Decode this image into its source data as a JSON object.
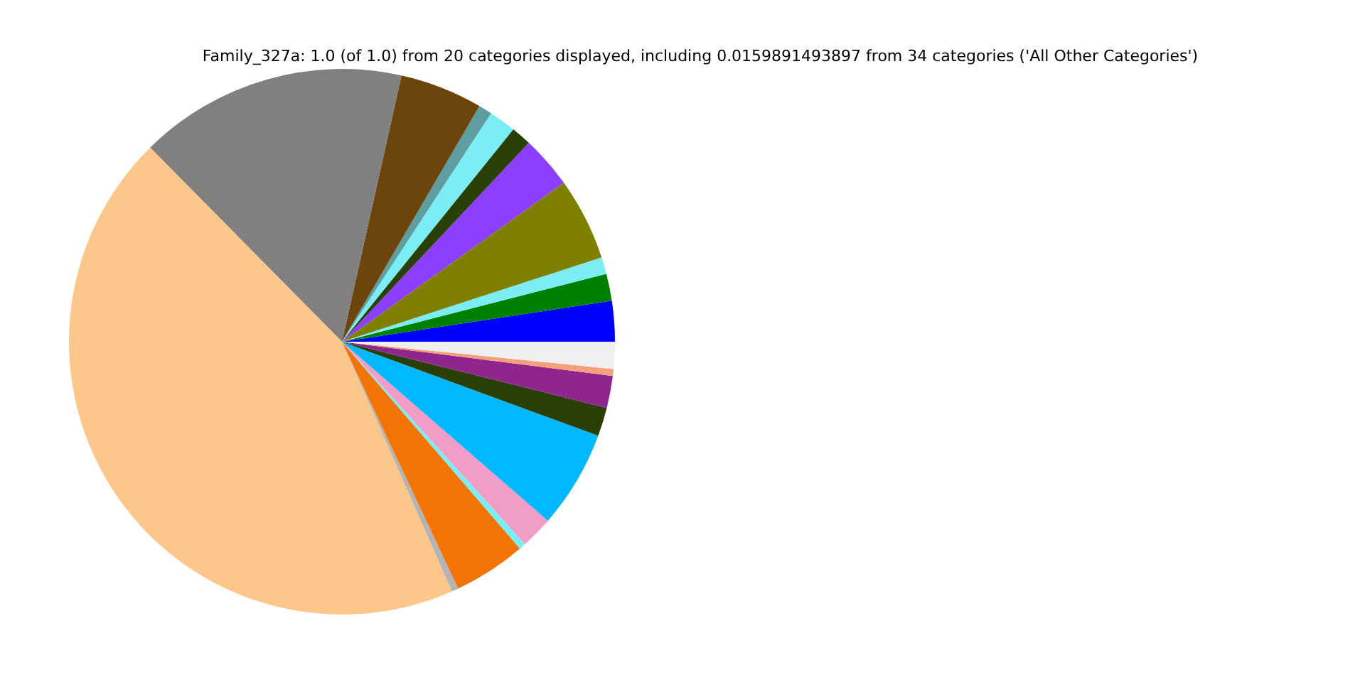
{
  "chart_data": {
    "type": "pie",
    "title": "Family_327a: 1.0 (of 1.0) from 20 categories displayed, including 0.0159891493897 from 34 categories ('All Other Categories')",
    "categories": [
      null,
      null,
      null,
      null,
      null,
      null,
      null,
      null,
      null,
      null,
      null,
      null,
      null,
      null,
      null,
      null,
      null,
      null,
      null,
      null
    ],
    "values": [
      2.4,
      1.6,
      1.0,
      4.9,
      3.1,
      1.2,
      1.6,
      0.8,
      4.9,
      15.9,
      44.2,
      0.4,
      4.3,
      0.4,
      1.9,
      5.8,
      1.7,
      1.9,
      0.4,
      1.6
    ],
    "colors": [
      "#0000ff",
      "#008000",
      "#7beef5",
      "#808000",
      "#8c3fff",
      "#2a3f06",
      "#7beef5",
      "#5f9ea0",
      "#6b450b",
      "#808080",
      "#fcc78b",
      "#b4b4b4",
      "#f27405",
      "#7beef5",
      "#f29dc8",
      "#00b8ff",
      "#2a3f06",
      "#8f268e",
      "#f5a07c",
      "#efefef"
    ]
  }
}
